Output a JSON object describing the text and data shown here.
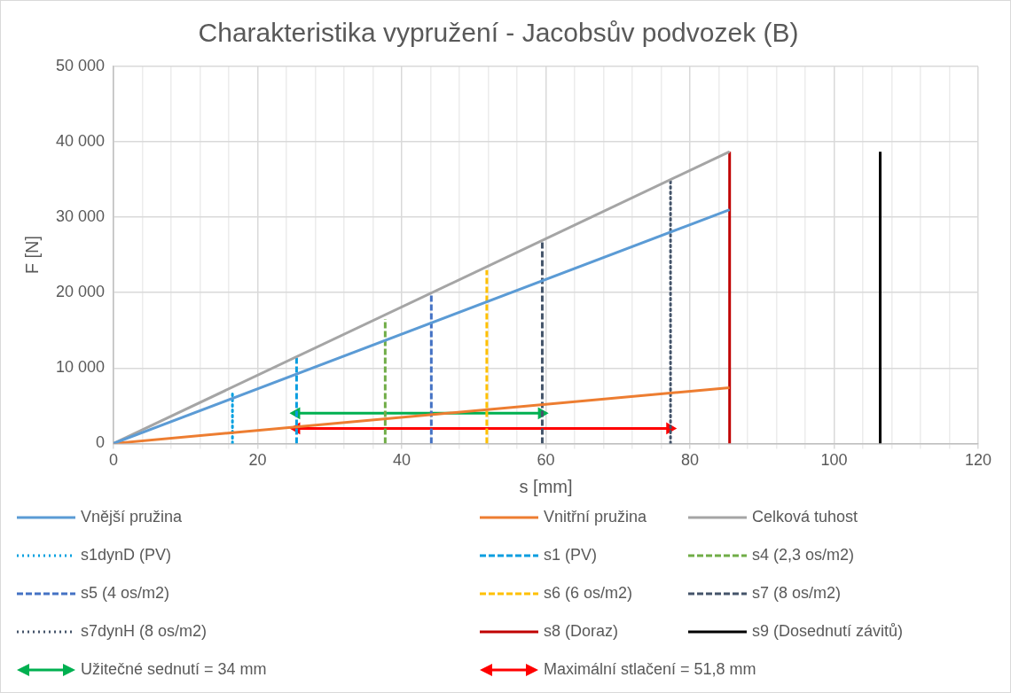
{
  "chart_data": {
    "type": "line",
    "title": "Charakteristika vypružení - Jacobsův podvozek (B)",
    "xlabel": "s [mm]",
    "ylabel": "F [N]",
    "xlim": [
      0,
      120
    ],
    "xticks": [
      0,
      {
        "value": 4,
        "label": null
      },
      {
        "value": 8,
        "label": null
      },
      {
        "value": 12,
        "label": null
      },
      {
        "value": 16,
        "label": null
      },
      20,
      {
        "value": 24,
        "label": null
      },
      {
        "value": 28,
        "label": null
      },
      {
        "value": 32,
        "label": null
      },
      {
        "value": 36,
        "label": null
      },
      40,
      {
        "value": 44,
        "label": null
      },
      {
        "value": 48,
        "label": null
      },
      {
        "value": 52,
        "label": null
      },
      {
        "value": 56,
        "label": null
      },
      60,
      {
        "value": 64,
        "label": null
      },
      {
        "value": 68,
        "label": null
      },
      {
        "value": 72,
        "label": null
      },
      {
        "value": 76,
        "label": null
      },
      80,
      {
        "value": 84,
        "label": null
      },
      {
        "value": 88,
        "label": null
      },
      {
        "value": 92,
        "label": null
      },
      {
        "value": 96,
        "label": null
      },
      100,
      {
        "value": 104,
        "label": null
      },
      {
        "value": 108,
        "label": null
      },
      {
        "value": 112,
        "label": null
      },
      {
        "value": 116,
        "label": null
      },
      120
    ],
    "ylim": [
      0,
      50000
    ],
    "yticks": [
      0,
      {
        "value": 10000,
        "label": "10 000"
      },
      {
        "value": 20000,
        "label": "20 000"
      },
      {
        "value": 30000,
        "label": "30 000"
      },
      {
        "value": 40000,
        "label": "40 000"
      },
      {
        "value": 50000,
        "label": "50 000"
      }
    ],
    "grid": true,
    "legend": "bottom",
    "marker": "none",
    "series": [
      {
        "name": "Vnější pružina",
        "color": "#5b9bd5",
        "line_style": "solid",
        "x": [
          0,
          85.5
        ],
        "values": [
          0,
          31000
        ]
      },
      {
        "name": "Vnitřní pružina",
        "color": "#ed7d31",
        "line_style": "solid",
        "x": [
          0,
          85.5
        ],
        "values": [
          0,
          7400
        ]
      },
      {
        "name": "Celková tuhost",
        "color": "#a5a5a5",
        "line_style": "solid",
        "x": [
          0,
          85.5
        ],
        "values": [
          0,
          38700
        ]
      },
      {
        "name": "s1dynD (PV)",
        "color": "#00a0e0",
        "line_style": "dotted",
        "x": [
          16.5,
          16.5
        ],
        "values": [
          0,
          7000
        ]
      },
      {
        "name": "s1 (PV)",
        "color": "#0a9ee0",
        "line_style": "dashed",
        "x": [
          25.4,
          25.4
        ],
        "values": [
          0,
          11700
        ]
      },
      {
        "name": "s4 (2,3 os/m2)",
        "color": "#70ad47",
        "line_style": "dashed",
        "x": [
          37.7,
          37.7
        ],
        "values": [
          0,
          16500
        ]
      },
      {
        "name": "s5 (4 os/m2)",
        "color": "#4472c4",
        "line_style": "dashed",
        "x": [
          44.1,
          44.1
        ],
        "values": [
          0,
          20000
        ]
      },
      {
        "name": "s6 (6 os/m2)",
        "color": "#ffc000",
        "line_style": "dashed",
        "x": [
          51.8,
          51.8
        ],
        "values": [
          0,
          23000
        ]
      },
      {
        "name": "s7 (8 os/m2)",
        "color": "#44546a",
        "line_style": "dashed",
        "x": [
          59.5,
          59.5
        ],
        "values": [
          0,
          27000
        ]
      },
      {
        "name": "s7dynH (8 os/m2)",
        "color": "#44546a",
        "line_style": "dotted",
        "x": [
          77.3,
          77.3
        ],
        "values": [
          0,
          35000
        ]
      },
      {
        "name": "s8 (Doraz)",
        "color": "#c00000",
        "line_style": "solid",
        "x": [
          85.5,
          85.5
        ],
        "values": [
          0,
          38700
        ]
      },
      {
        "name": "s9 (Dosednutí závitů)",
        "color": "#000000",
        "line_style": "solid",
        "x": [
          106.4,
          106.4
        ],
        "values": [
          0,
          38700
        ]
      },
      {
        "name": "Užitečné sednutí = 34 mm",
        "color": "#00b050",
        "line_style": "solid",
        "marker": "triangle",
        "x": [
          25.4,
          59.4
        ],
        "values": [
          4000,
          4000
        ]
      },
      {
        "name": "Maximální stlačení = 51,8 mm",
        "color": "#ff0000",
        "line_style": "solid",
        "marker": "triangle",
        "x": [
          25.4,
          77.2
        ],
        "values": [
          2000,
          2000
        ]
      }
    ]
  }
}
